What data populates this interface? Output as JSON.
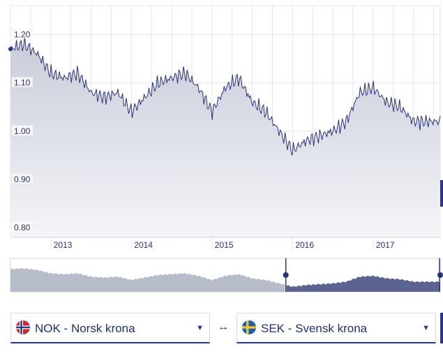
{
  "chart_data": {
    "type": "area",
    "y_ticks": [
      "1.20",
      "1.10",
      "1.00",
      "0.90",
      "0.80"
    ],
    "y_tick_values": [
      1.2,
      1.1,
      1.0,
      0.9,
      0.8
    ],
    "ylim": [
      0.78,
      1.26
    ],
    "x_ticks": [
      "2013",
      "2014",
      "2015",
      "2016",
      "2017"
    ],
    "xlim": [
      "2012-07-01",
      "2017-10-31"
    ],
    "grid": true,
    "series": [
      {
        "x": [
          "2012-07",
          "2012-09",
          "2012-11",
          "2013-01",
          "2013-03",
          "2013-05",
          "2013-07",
          "2013-09",
          "2013-11",
          "2014-01",
          "2014-03",
          "2014-05",
          "2014-07",
          "2014-09",
          "2014-11",
          "2015-01",
          "2015-03",
          "2015-05",
          "2015-07",
          "2015-09",
          "2015-11",
          "2016-01",
          "2016-03",
          "2016-05",
          "2016-07",
          "2016-09",
          "2016-11",
          "2017-01",
          "2017-03",
          "2017-05",
          "2017-07",
          "2017-09",
          "2017-10"
        ],
        "values": [
          1.17,
          1.18,
          1.16,
          1.12,
          1.11,
          1.12,
          1.08,
          1.07,
          1.08,
          1.04,
          1.07,
          1.1,
          1.11,
          1.12,
          1.09,
          1.04,
          1.09,
          1.11,
          1.06,
          1.04,
          1.0,
          0.96,
          0.98,
          0.99,
          1.0,
          1.02,
          1.08,
          1.09,
          1.06,
          1.05,
          1.02,
          1.02,
          1.02
        ]
      }
    ],
    "navigator": {
      "range_start": "2015-12",
      "range_end": "2017-10"
    },
    "colors": {
      "line": "#2a3278",
      "area_top": "#c9ccd9",
      "area_bottom": "#f2f3f7",
      "grid": "#e3e6ef",
      "navigator_left": "#b7bcca",
      "navigator_right": "#5b6391",
      "accent": "#2e3487"
    }
  },
  "selectors": {
    "from": {
      "label": "NOK - Norsk krona",
      "flag": "norway-flag-icon"
    },
    "to": {
      "label": "SEK - Svensk krona",
      "flag": "sweden-flag-icon"
    },
    "swap_symbol": "↔",
    "caret_symbol": "▼"
  }
}
